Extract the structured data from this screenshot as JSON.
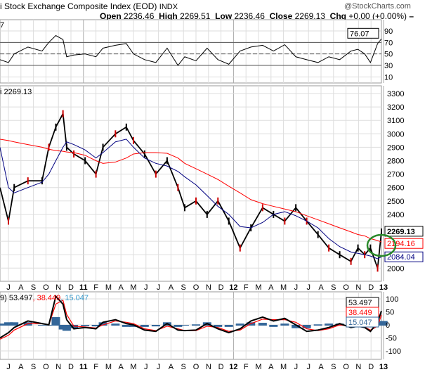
{
  "header": {
    "title": "i Stock Exchange Composite Index (EOD)",
    "exchange": "INDX",
    "watermark": "@StockCharts.com",
    "ohlc": {
      "open_label": "Open",
      "open": "2236.46",
      "high_label": "High",
      "high": "2269.51",
      "low_label": "Low",
      "low": "2236.46",
      "close_label": "Close",
      "close": "2269.13",
      "chg_label": "Chg",
      "chg": "+0.00 (+0.00%)"
    }
  },
  "chart_data": [
    {
      "type": "line",
      "panel": "rsi",
      "label": "7",
      "last_value": "76.07",
      "ylim": [
        0,
        100
      ],
      "tick_labels": [
        "90",
        "70",
        "50",
        "30",
        "10"
      ],
      "reference_lines": [
        70,
        50,
        30
      ],
      "x": [
        "2010-06-10",
        "2010-07-01",
        "2010-07-15",
        "2010-08-18",
        "2010-09-22",
        "2010-10-08",
        "2010-10-25",
        "2010-11-12",
        "2010-11-21",
        "2010-12-08",
        "2011-01-05",
        "2011-02-01",
        "2011-02-18",
        "2011-03-18",
        "2011-04-14",
        "2011-05-01",
        "2011-05-28",
        "2011-06-25",
        "2011-07-22",
        "2011-08-18",
        "2011-09-04",
        "2011-10-01",
        "2011-10-28",
        "2011-11-24",
        "2011-12-20",
        "2012-01-17",
        "2012-02-13",
        "2012-03-11",
        "2012-04-07",
        "2012-05-04",
        "2012-05-31",
        "2012-06-27",
        "2012-07-24",
        "2012-08-20",
        "2012-09-16",
        "2012-10-13",
        "2012-10-30",
        "2012-11-16",
        "2012-11-30",
        "2012-12-17",
        "2012-12-31"
      ],
      "values": [
        40,
        35,
        50,
        62,
        55,
        70,
        82,
        75,
        45,
        48,
        50,
        45,
        60,
        65,
        68,
        50,
        40,
        35,
        60,
        30,
        45,
        38,
        60,
        40,
        32,
        55,
        62,
        65,
        55,
        66,
        45,
        40,
        35,
        45,
        40,
        55,
        58,
        50,
        35,
        68,
        76.07
      ]
    },
    {
      "type": "line",
      "panel": "price",
      "label": "i 2269.13",
      "ylim": [
        1950,
        3350
      ],
      "tick_labels": [
        "3300",
        "3200",
        "3100",
        "3000",
        "2900",
        "2800",
        "2700",
        "2600",
        "2500",
        "2400",
        "2000"
      ],
      "x": [
        "2010-06-10",
        "2010-07-01",
        "2010-07-15",
        "2010-08-18",
        "2010-09-22",
        "2010-10-08",
        "2010-10-25",
        "2010-11-12",
        "2010-11-21",
        "2010-12-08",
        "2011-01-05",
        "2011-02-01",
        "2011-02-18",
        "2011-03-18",
        "2011-04-14",
        "2011-05-01",
        "2011-05-28",
        "2011-06-25",
        "2011-07-22",
        "2011-08-18",
        "2011-09-04",
        "2011-10-01",
        "2011-10-28",
        "2011-11-24",
        "2011-12-20",
        "2012-01-17",
        "2012-02-13",
        "2012-03-11",
        "2012-04-07",
        "2012-05-04",
        "2012-05-31",
        "2012-06-27",
        "2012-07-24",
        "2012-08-20",
        "2012-09-16",
        "2012-10-13",
        "2012-10-30",
        "2012-11-16",
        "2012-11-30",
        "2012-12-17",
        "2012-12-31"
      ],
      "series": [
        {
          "values": [
            2600,
            2350,
            2600,
            2650,
            2650,
            2900,
            3050,
            3150,
            2900,
            2850,
            2800,
            2700,
            2900,
            3000,
            3050,
            2950,
            2850,
            2700,
            2800,
            2600,
            2450,
            2500,
            2400,
            2500,
            2350,
            2150,
            2300,
            2450,
            2400,
            2350,
            2450,
            2350,
            2250,
            2150,
            2100,
            2050,
            2150,
            2100,
            2150,
            2000,
            2269.13
          ],
          "color": "#000000"
        },
        {
          "values": [
            2960,
            2950,
            2940,
            2920,
            2900,
            2885,
            2875,
            2870,
            2865,
            2860,
            2840,
            2800,
            2780,
            2790,
            2820,
            2850,
            2860,
            2860,
            2855,
            2820,
            2780,
            2740,
            2700,
            2660,
            2610,
            2560,
            2510,
            2480,
            2460,
            2440,
            2420,
            2390,
            2360,
            2330,
            2300,
            2270,
            2250,
            2240,
            2220,
            2205,
            2194.16
          ],
          "color": "#ff0000",
          "last_value": "2194.16"
        },
        {
          "values": [
            2900,
            2600,
            2560,
            2600,
            2640,
            2700,
            2800,
            2900,
            2940,
            2920,
            2880,
            2820,
            2860,
            2940,
            2960,
            2900,
            2820,
            2780,
            2760,
            2720,
            2680,
            2620,
            2540,
            2460,
            2400,
            2310,
            2300,
            2340,
            2400,
            2420,
            2390,
            2350,
            2300,
            2220,
            2160,
            2120,
            2110,
            2100,
            2090,
            2070,
            2084.04
          ],
          "color": "#000080",
          "last_value": "2084.04"
        }
      ],
      "annotation": "green circle around latest crossover"
    },
    {
      "type": "line",
      "panel": "indicator",
      "label": "9) 53.497, 38.449, 15.047",
      "label_parts": {
        "prefix": "9)",
        "a": "53.497",
        "b": "38.449",
        "c": "15.047"
      },
      "ylim": [
        -120,
        110
      ],
      "tick_labels": [
        "100",
        "50",
        "0",
        "-50",
        "-100"
      ],
      "x": [
        "2010-06-10",
        "2010-07-01",
        "2010-07-15",
        "2010-08-18",
        "2010-09-22",
        "2010-10-08",
        "2010-10-25",
        "2010-11-12",
        "2010-11-21",
        "2010-12-08",
        "2011-01-05",
        "2011-02-01",
        "2011-02-18",
        "2011-03-18",
        "2011-04-14",
        "2011-05-01",
        "2011-05-28",
        "2011-06-25",
        "2011-07-22",
        "2011-08-18",
        "2011-09-04",
        "2011-10-01",
        "2011-10-28",
        "2011-11-24",
        "2011-12-20",
        "2012-01-17",
        "2012-02-13",
        "2012-03-11",
        "2012-04-07",
        "2012-05-04",
        "2012-05-31",
        "2012-06-27",
        "2012-07-24",
        "2012-08-20",
        "2012-09-16",
        "2012-10-13",
        "2012-10-30",
        "2012-11-16",
        "2012-11-30",
        "2012-12-17",
        "2012-12-31"
      ],
      "series": [
        {
          "values": [
            -50,
            -30,
            -10,
            15,
            5,
            0,
            110,
            80,
            20,
            -15,
            -10,
            -15,
            10,
            20,
            5,
            0,
            -20,
            -25,
            5,
            -20,
            -22,
            -20,
            5,
            -15,
            -30,
            -15,
            15,
            30,
            15,
            25,
            0,
            -25,
            -20,
            -10,
            5,
            -10,
            -5,
            -10,
            -25,
            10,
            53.497
          ],
          "color": "#000000"
        },
        {
          "values": [
            -55,
            -40,
            -20,
            5,
            5,
            0,
            80,
            95,
            40,
            -5,
            -8,
            -12,
            0,
            15,
            10,
            5,
            -15,
            -22,
            -5,
            -15,
            -22,
            -22,
            -5,
            -10,
            -25,
            -20,
            5,
            22,
            20,
            20,
            10,
            -15,
            -22,
            -15,
            0,
            -5,
            -5,
            -8,
            -20,
            -5,
            38.449
          ],
          "color": "#ff0000"
        },
        {
          "name": "histogram",
          "color": "#336699"
        }
      ]
    }
  ],
  "x_axis": {
    "months": [
      "J",
      "A",
      "S",
      "O",
      "N",
      "D",
      "11",
      "F",
      "M",
      "A",
      "M",
      "J",
      "J",
      "A",
      "S",
      "O",
      "N",
      "D",
      "12",
      "F",
      "M",
      "A",
      "M",
      "J",
      "J",
      "A",
      "S",
      "O",
      "N",
      "D",
      "13"
    ],
    "year_labels": [
      "11",
      "12",
      "13"
    ]
  }
}
